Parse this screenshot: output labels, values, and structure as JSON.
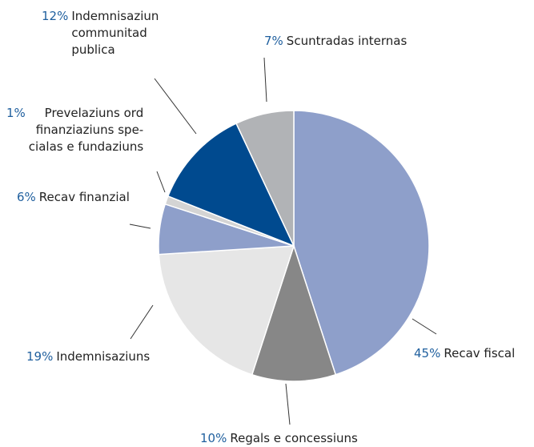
{
  "chart_data": {
    "type": "pie",
    "categories": [
      "Recav fiscal",
      "Regals e concessiuns",
      "Indemnisaziuns",
      "Recav finanzial",
      "Prevelaziuns ord\nfinanziaziuns spe-\ncialas e fundaziuns",
      "Indemnisaziun\ncommunitad\npublica",
      "Scuntradas internas"
    ],
    "values": [
      45,
      10,
      19,
      6,
      1,
      12,
      7
    ],
    "value_labels": [
      "45%",
      "10%",
      "19%",
      "6%",
      "1%",
      "12%",
      "7%"
    ],
    "colors": [
      "#8e9fca",
      "#878787",
      "#e6e6e6",
      "#8e9fca",
      "#d4d4d4",
      "#004a8f",
      "#b1b3b6"
    ]
  }
}
